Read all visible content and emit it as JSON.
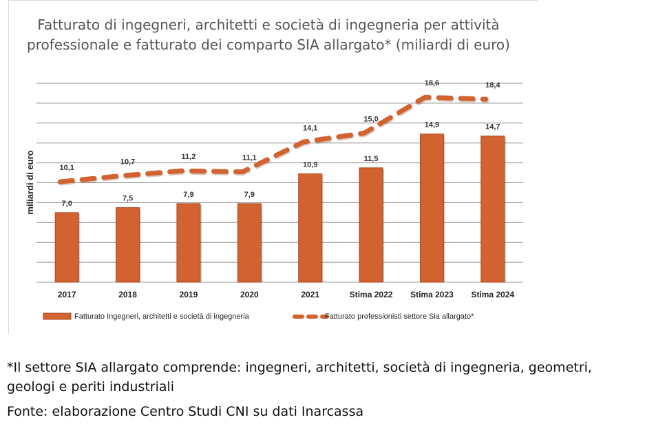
{
  "chart_data": {
    "type": "bar",
    "title": "Fatturato di ingegneri, architetti e società di ingegneria per attività professionale e fatturato dei comparto SIA allargato* (miliardi di euro)",
    "ylabel": "miliardi di euro",
    "categories": [
      "2017",
      "2018",
      "2019",
      "2020",
      "2021",
      "Stima 2022",
      "Stima 2023",
      "Stima 2024"
    ],
    "ylim": [
      0,
      20
    ],
    "grid": true,
    "legend": "bottom",
    "series": [
      {
        "name": "Fatturato Ingegneri, architetti e società di ingegneria",
        "type": "bar",
        "color": "#d2622f",
        "values": [
          7.0,
          7.5,
          7.9,
          7.9,
          10.9,
          11.5,
          14.9,
          14.7
        ],
        "labels": [
          "7,0",
          "7,5",
          "7,9",
          "7,9",
          "10,9",
          "11,5",
          "14,9",
          "14,7"
        ]
      },
      {
        "name": "Fatturato professionisti settore Sia allargato*",
        "type": "line",
        "style": "dashed",
        "color": "#d2622f",
        "values": [
          10.1,
          10.7,
          11.2,
          11.1,
          14.1,
          15.0,
          18.6,
          18.4
        ],
        "labels": [
          "10,1",
          "10,7",
          "11,2",
          "11,1",
          "14,1",
          "15,0",
          "18,6",
          "18,4"
        ]
      }
    ]
  },
  "notes": {
    "definition": "*Il settore SIA allargato comprende: ingegneri, architetti, società di ingegneria, geometri, geologi e periti industriali",
    "source": "Fonte: elaborazione Centro Studi CNI su dati Inarcassa"
  }
}
